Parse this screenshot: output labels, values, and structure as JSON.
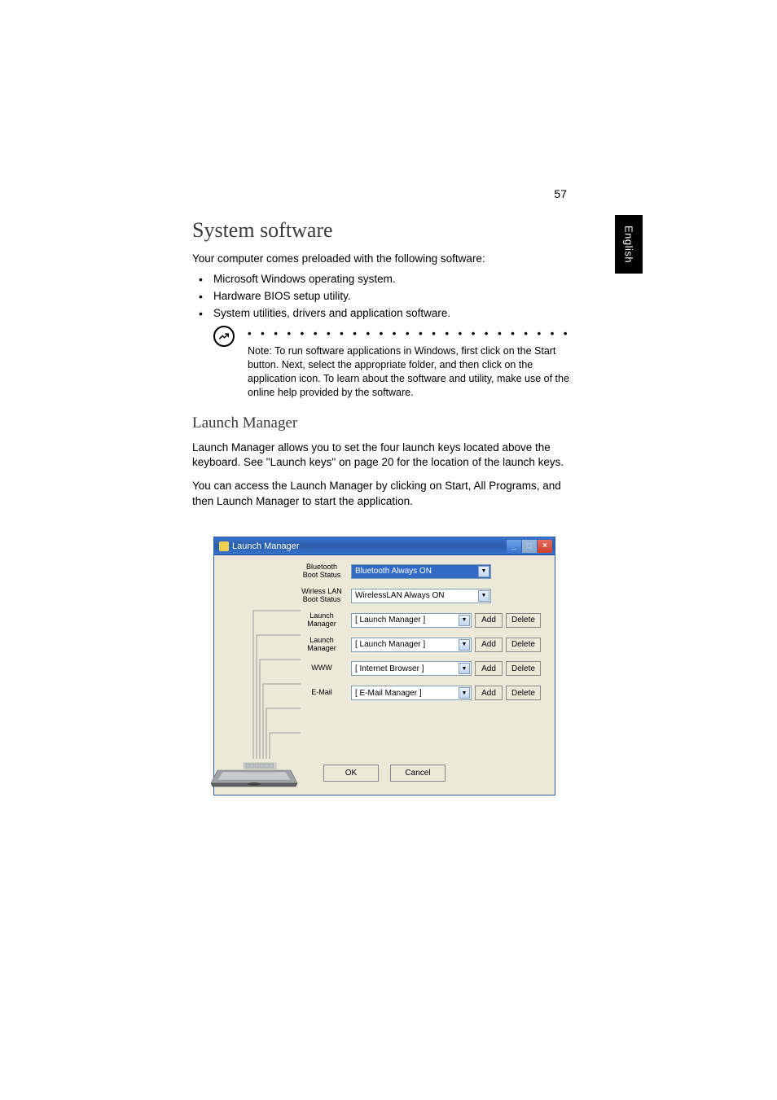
{
  "page_number": "57",
  "side_tab": "English",
  "h1": "System software",
  "intro": "Your computer comes preloaded with the following software:",
  "bullets": [
    "Microsoft Windows operating system.",
    "Hardware BIOS setup utility.",
    "System utilities, drivers and application software."
  ],
  "note": "Note: To run software applications in Windows, first click on the Start button. Next, select the appropriate folder, and then click on the application icon. To learn about the software and utility, make use of the online help provided by the software.",
  "h2": "Launch Manager",
  "para1": "Launch Manager allows you to set the four launch keys located above the keyboard.  See \"Launch keys\" on page 20 for the location of the launch keys.",
  "para2": "You can access the Launch Manager by clicking on Start, All Programs, and then Launch Manager to start the application.",
  "dialog": {
    "title": "Launch Manager",
    "rows": [
      {
        "label_l1": "Bluetooth",
        "label_l2": "Boot Status",
        "combo": "Bluetooth Always ON",
        "highlight": true,
        "wide": true
      },
      {
        "label_l1": "Wirless LAN",
        "label_l2": "Boot Status",
        "combo": "WirelessLAN Always ON",
        "highlight": false,
        "wide": true
      },
      {
        "label_l1": "Launch",
        "label_l2": "Manager",
        "combo": "[ Launch Manager ]",
        "highlight": false,
        "wide": false
      },
      {
        "label_l1": "Launch",
        "label_l2": "Manager",
        "combo": "[ Launch Manager ]",
        "highlight": false,
        "wide": false
      },
      {
        "label_l1": "WWW",
        "label_l2": "",
        "combo": "[ Internet Browser ]",
        "highlight": false,
        "wide": false
      },
      {
        "label_l1": "E-Mail",
        "label_l2": "",
        "combo": "[ E-Mail Manager ]",
        "highlight": false,
        "wide": false
      }
    ],
    "add_label": "Add",
    "delete_label": "Delete",
    "ok_label": "OK",
    "cancel_label": "Cancel",
    "colors": {
      "titlebar_start": "#3a74d0",
      "titlebar_end": "#2a5da8",
      "body_bg": "#ece9d8",
      "combo_border": "#7f9db9",
      "highlight_bg": "#316ac5",
      "close_bg": "#cc4030"
    },
    "row_top_start": 10,
    "row_spacing_first_two": 30,
    "row_spacing_rest": 30
  }
}
